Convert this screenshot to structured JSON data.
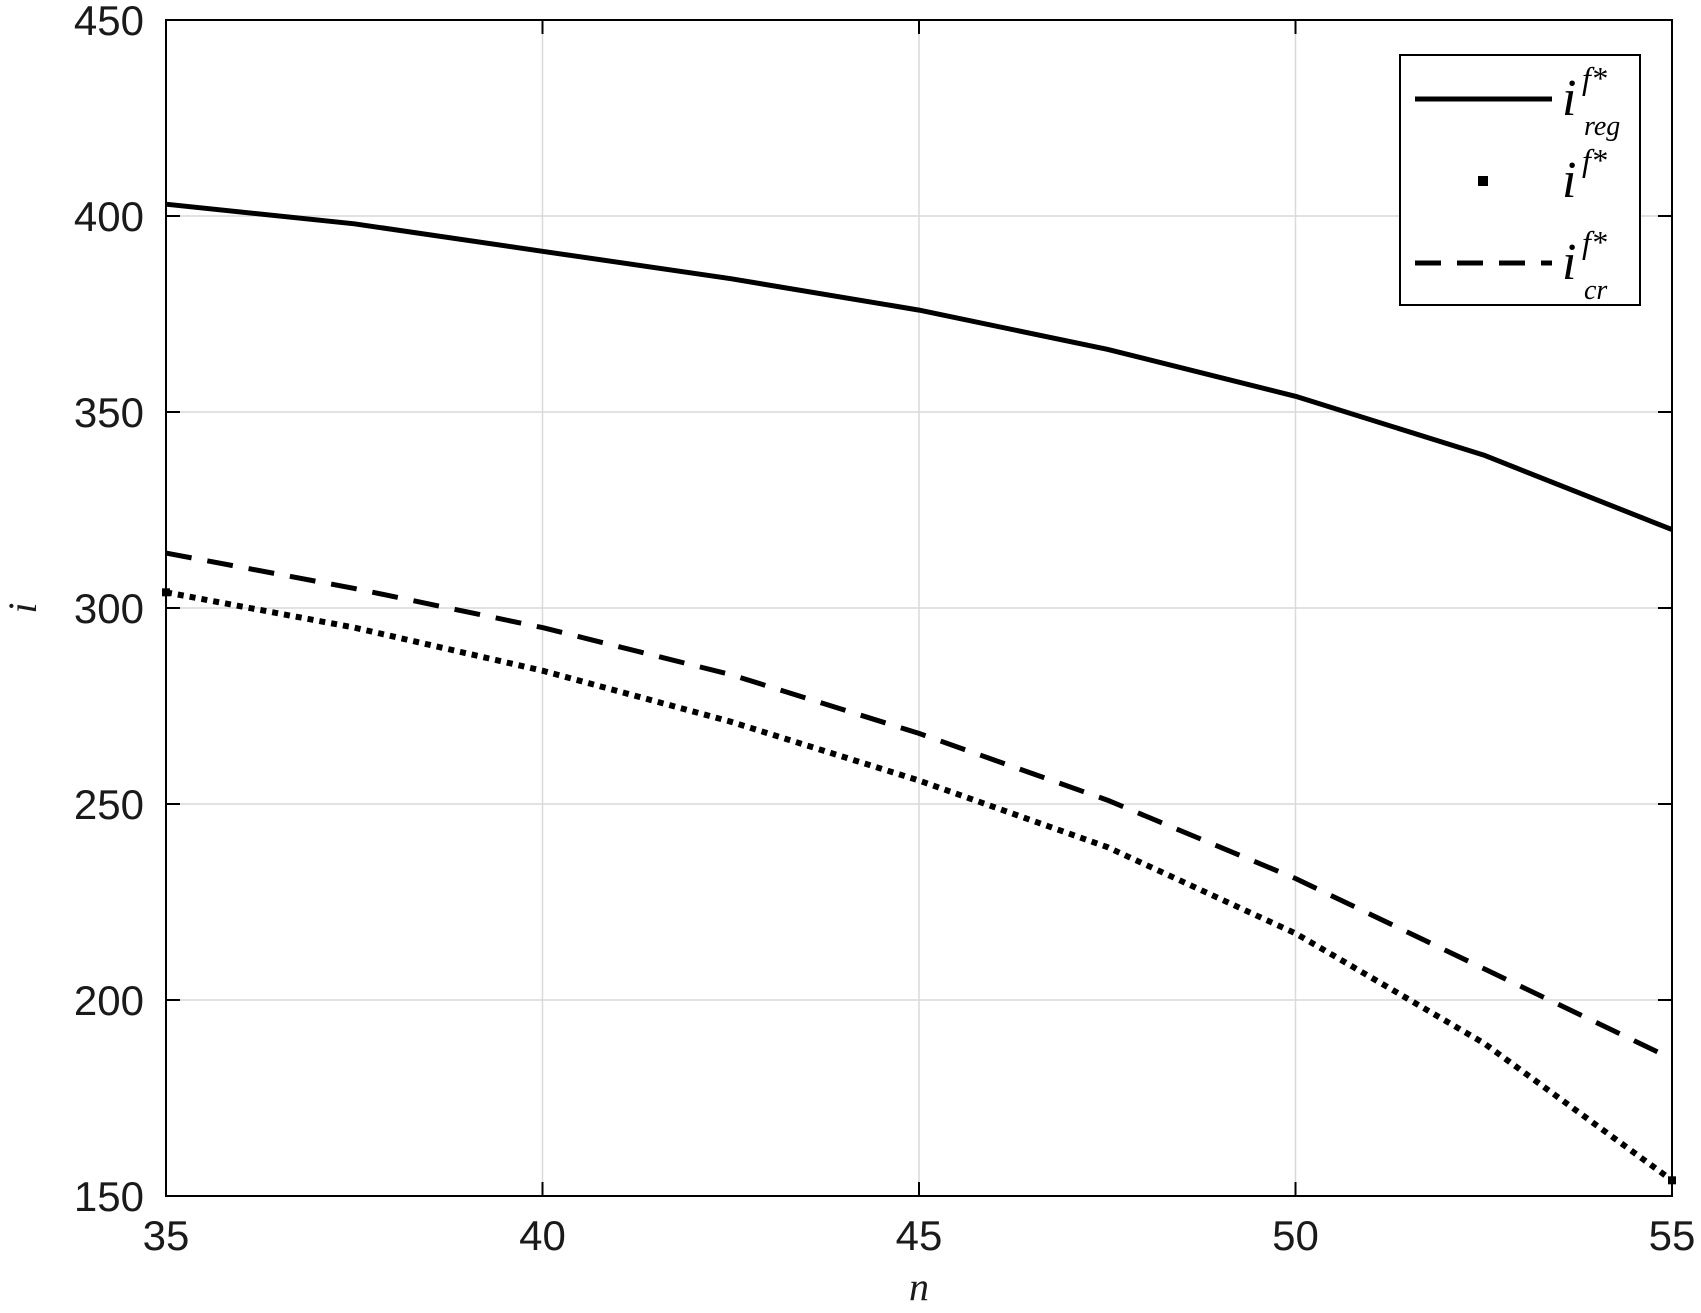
{
  "chart_data": {
    "type": "line",
    "title": "",
    "xlabel": "n",
    "ylabel": "i",
    "xlim": [
      35,
      55
    ],
    "ylim": [
      150,
      450
    ],
    "xticks": [
      "35",
      "40",
      "45",
      "50",
      "55"
    ],
    "yticks": [
      "150",
      "200",
      "250",
      "300",
      "350",
      "400",
      "450"
    ],
    "grid": true,
    "legend_position": "top-right",
    "x": [
      35,
      37.5,
      40,
      42.5,
      45,
      47.5,
      50,
      52.5,
      55
    ],
    "series": [
      {
        "name": "i^{f*}_{reg}",
        "legend_base": "i",
        "legend_sup": "f*",
        "legend_sub": "reg",
        "style": "solid",
        "values": [
          403,
          398,
          391,
          384,
          376,
          366,
          354,
          339,
          320
        ]
      },
      {
        "name": "i^{f*}",
        "legend_base": "i",
        "legend_sup": "f*",
        "legend_sub": "",
        "style": "dotted",
        "values": [
          304,
          295,
          284,
          271,
          256,
          239,
          217,
          189,
          154
        ]
      },
      {
        "name": "i^{f*}_{cr}",
        "legend_base": "i",
        "legend_sup": "f*",
        "legend_sub": "cr",
        "style": "dashed",
        "values": [
          314,
          305,
          295,
          283,
          268,
          251,
          231,
          208,
          185
        ]
      }
    ],
    "colors": {
      "line": "#000000",
      "grid": "#d9d9d9",
      "axis": "#000000"
    }
  }
}
